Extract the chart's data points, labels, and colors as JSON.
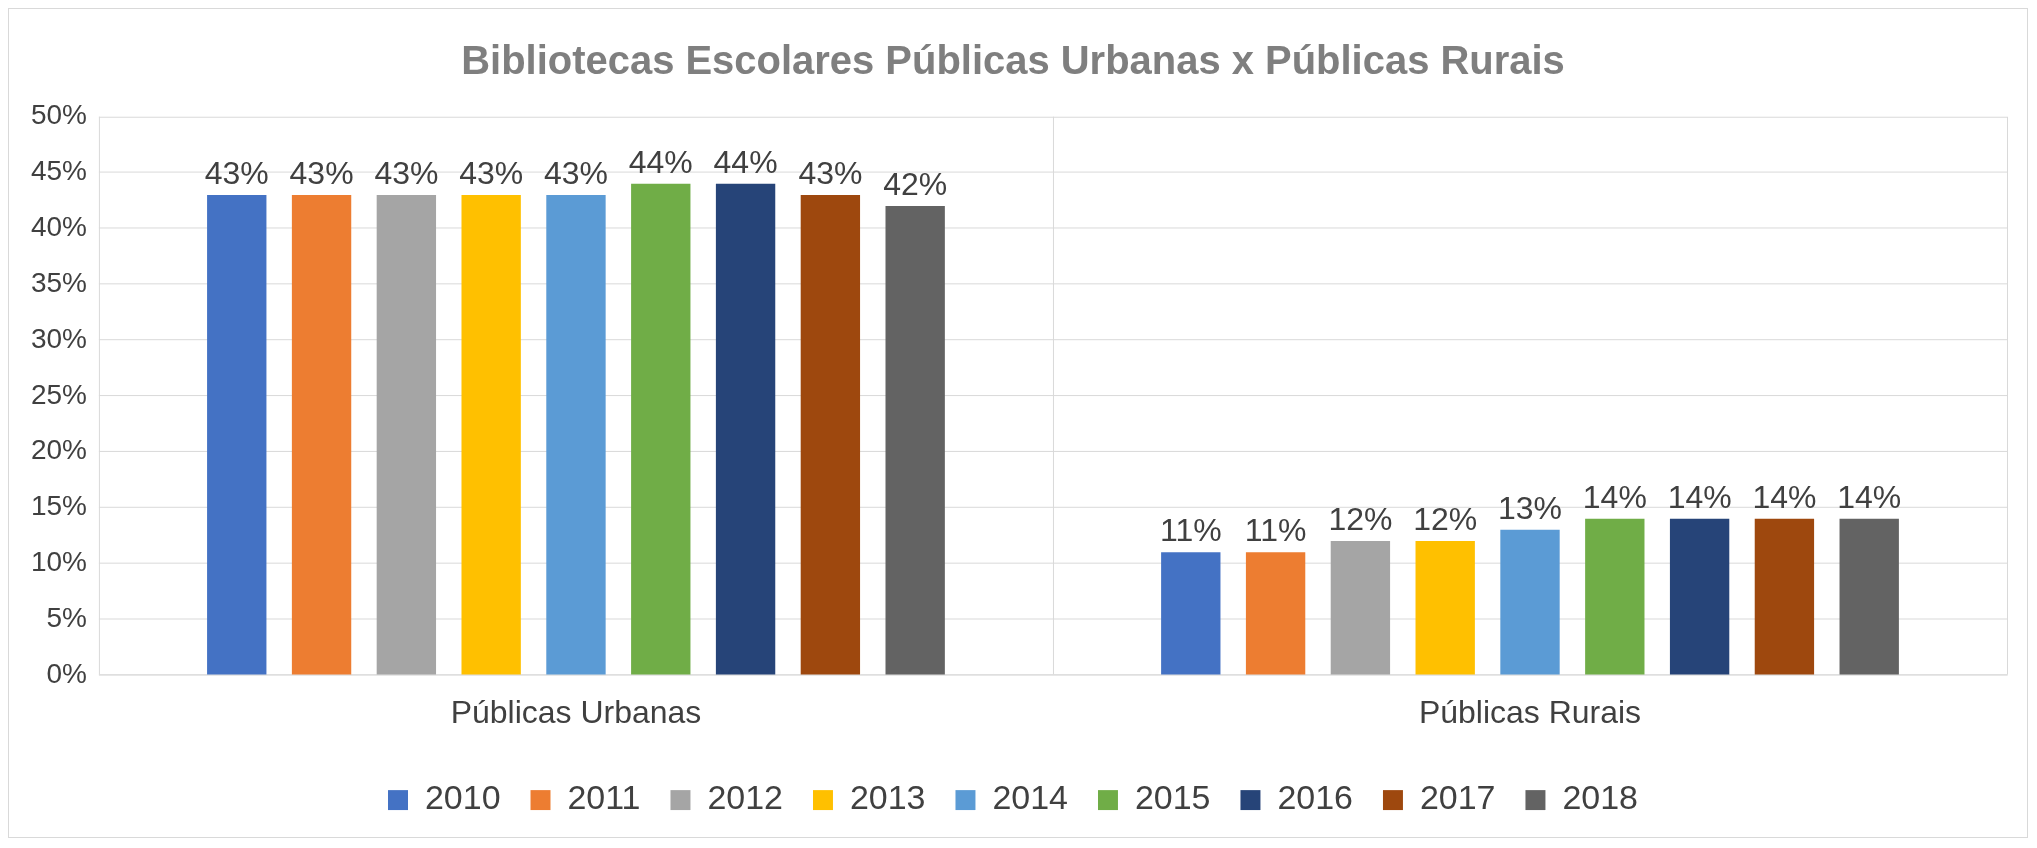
{
  "chart_data": {
    "type": "bar",
    "title": "Bibliotecas Escolares Públicas Urbanas x Públicas Rurais",
    "categories": [
      "Públicas Urbanas",
      "Públicas Rurais"
    ],
    "series": [
      {
        "name": "2010",
        "color": "#4472c4",
        "values": [
          43,
          11
        ],
        "value_labels": [
          "43%",
          "11%"
        ]
      },
      {
        "name": "2011",
        "color": "#ed7d31",
        "values": [
          43,
          11
        ],
        "value_labels": [
          "43%",
          "11%"
        ]
      },
      {
        "name": "2012",
        "color": "#a5a5a5",
        "values": [
          43,
          12
        ],
        "value_labels": [
          "43%",
          "12%"
        ]
      },
      {
        "name": "2013",
        "color": "#ffc000",
        "values": [
          43,
          12
        ],
        "value_labels": [
          "43%",
          "12%"
        ]
      },
      {
        "name": "2014",
        "color": "#5b9bd5",
        "values": [
          43,
          13
        ],
        "value_labels": [
          "43%",
          "13%"
        ]
      },
      {
        "name": "2015",
        "color": "#70ad47",
        "values": [
          44,
          14
        ],
        "value_labels": [
          "44%",
          "14%"
        ]
      },
      {
        "name": "2016",
        "color": "#264478",
        "values": [
          44,
          14
        ],
        "value_labels": [
          "44%",
          "14%"
        ]
      },
      {
        "name": "2017",
        "color": "#9e480e",
        "values": [
          43,
          14
        ],
        "value_labels": [
          "43%",
          "14%"
        ]
      },
      {
        "name": "2018",
        "color": "#636363",
        "values": [
          42,
          14
        ],
        "value_labels": [
          "42%",
          "14%"
        ]
      }
    ],
    "ylim": [
      0,
      50
    ],
    "yticks": [
      {
        "value": 0,
        "label": "0%"
      },
      {
        "value": 5,
        "label": "5%"
      },
      {
        "value": 10,
        "label": "10%"
      },
      {
        "value": 15,
        "label": "15%"
      },
      {
        "value": 20,
        "label": "20%"
      },
      {
        "value": 25,
        "label": "25%"
      },
      {
        "value": 30,
        "label": "30%"
      },
      {
        "value": 35,
        "label": "35%"
      },
      {
        "value": 40,
        "label": "40%"
      },
      {
        "value": 45,
        "label": "45%"
      },
      {
        "value": 50,
        "label": "50%"
      }
    ],
    "grid": true,
    "legend": "bottom"
  }
}
